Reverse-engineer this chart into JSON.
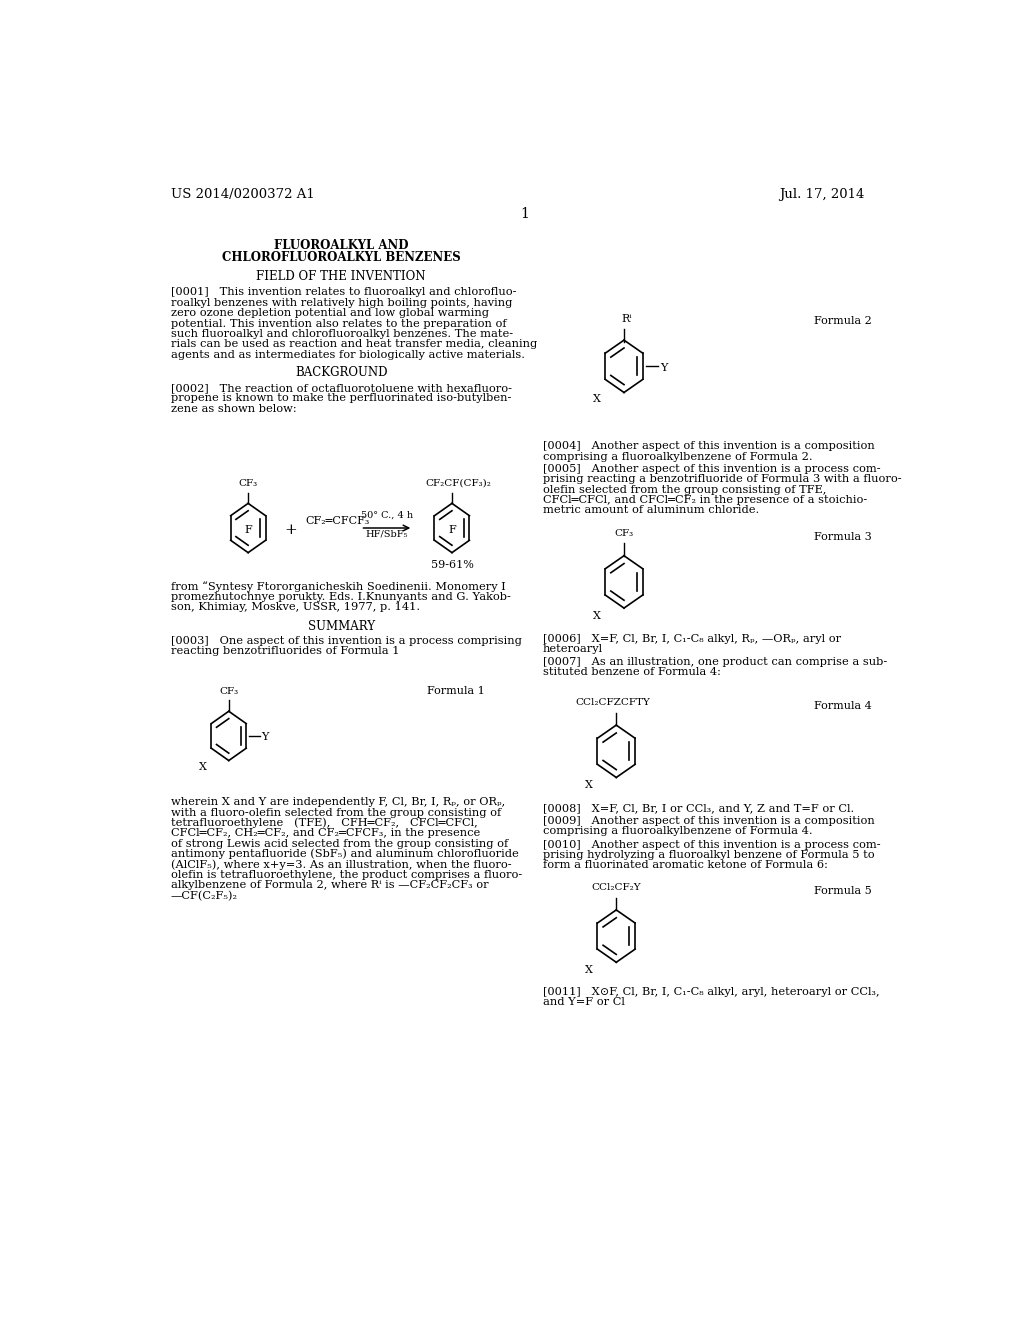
{
  "bg_color": "#ffffff",
  "header_left": "US 2014/0200372 A1",
  "header_right": "Jul. 17, 2014",
  "page_number": "1",
  "title_line1": "FLUOROALKYL AND",
  "title_line2": "CHLOROFLUOROALKYL BENZENES",
  "section1": "FIELD OF THE INVENTION",
  "section2": "BACKGROUND",
  "section3": "SUMMARY",
  "formula1_label": "Formula 1",
  "formula2_label": "Formula 2",
  "formula3_label": "Formula 3",
  "formula4_label": "Formula 4",
  "formula5_label": "Formula 5"
}
